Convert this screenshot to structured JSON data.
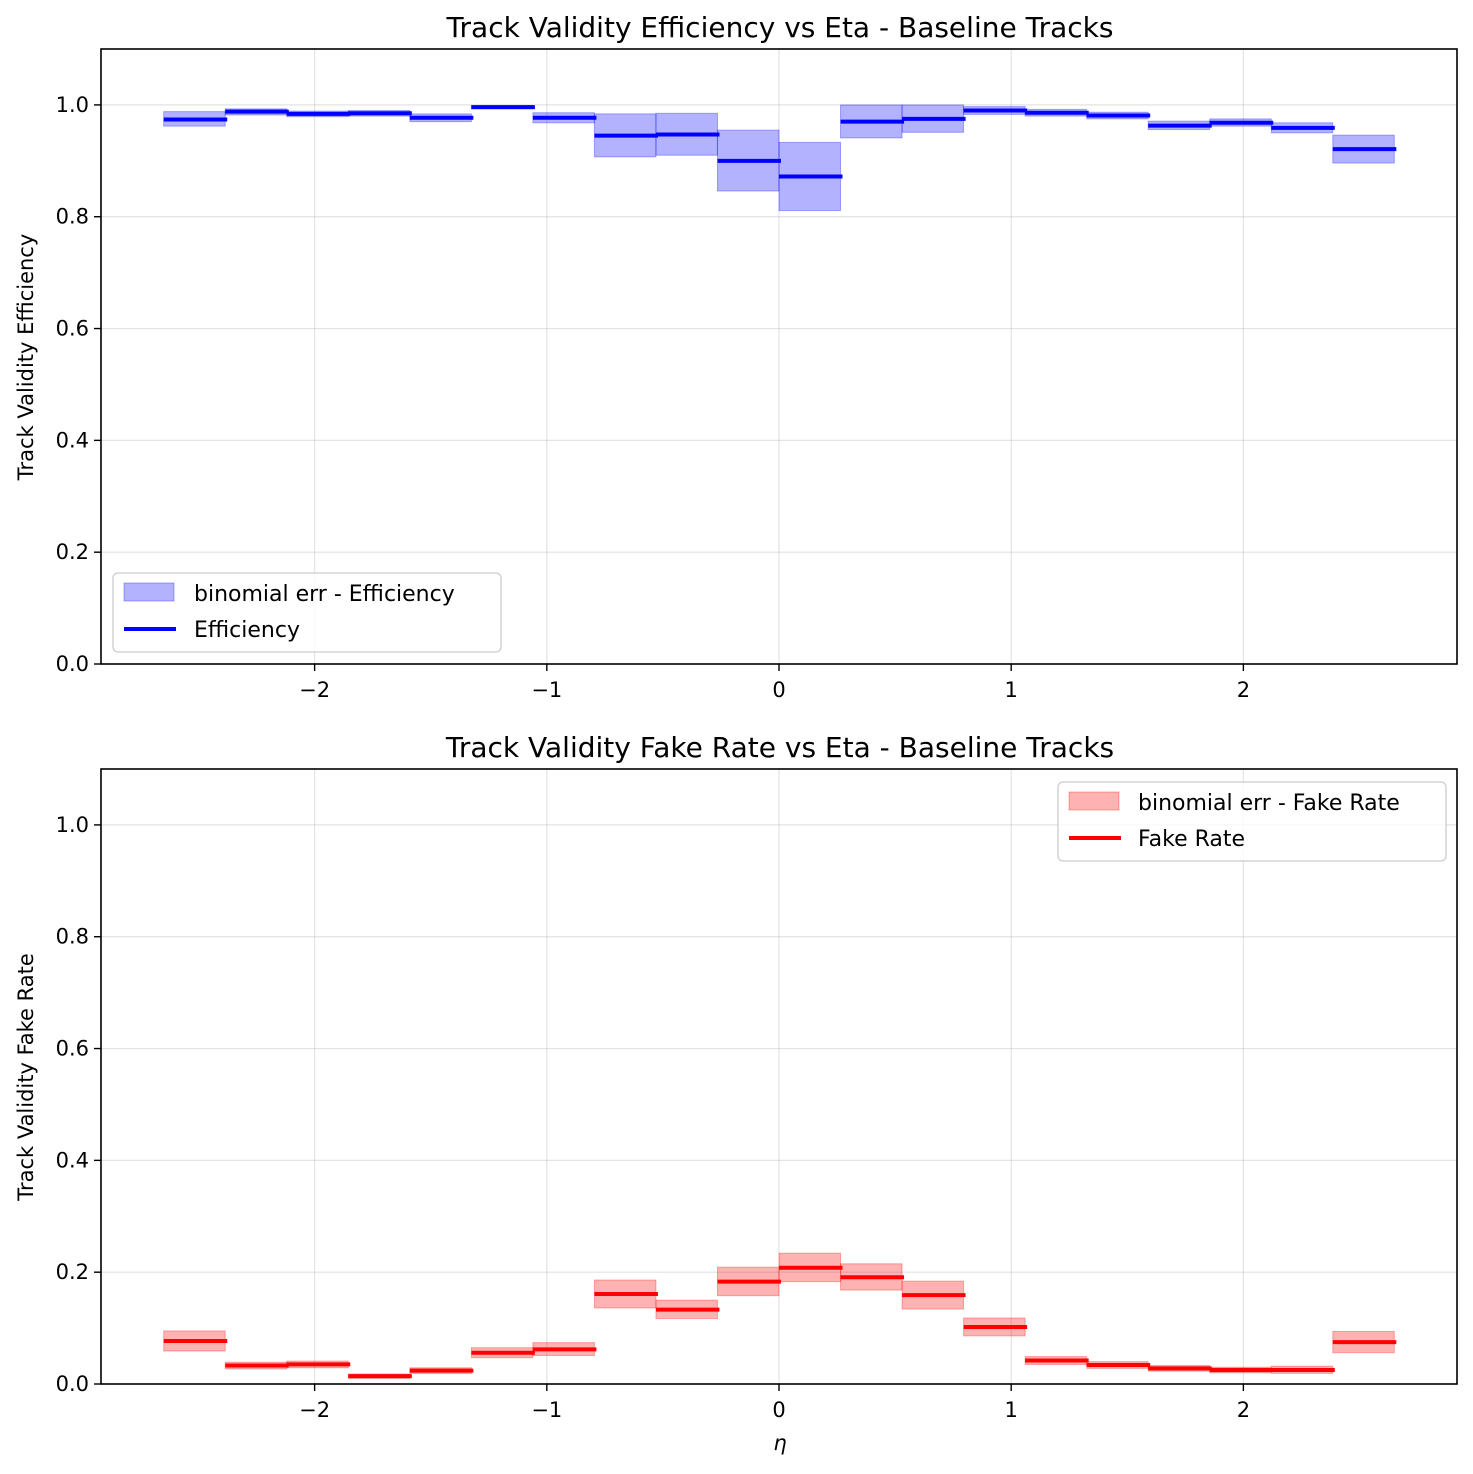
{
  "chart_data": [
    {
      "type": "bar",
      "title": "Track Validity Efficiency vs Eta - Baseline Tracks",
      "xlabel": "",
      "ylabel": "Track Validity Efficiency",
      "xlim": [
        -2.92,
        2.92
      ],
      "ylim": [
        0,
        1.1
      ],
      "xticks": [
        -2,
        -1,
        0,
        1,
        2
      ],
      "xtick_labels": [
        "−2",
        "−1",
        "0",
        "1",
        "2"
      ],
      "yticks": [
        0.0,
        0.2,
        0.4,
        0.6,
        0.8,
        1.0
      ],
      "ytick_labels": [
        "0.0",
        "0.2",
        "0.4",
        "0.6",
        "0.8",
        "1.0"
      ],
      "grid": true,
      "legend_position": "lower-left",
      "bin_edges": [
        -2.65,
        -2.385,
        -2.12,
        -1.855,
        -1.59,
        -1.325,
        -1.06,
        -0.795,
        -0.53,
        -0.265,
        0.0,
        0.265,
        0.53,
        0.795,
        1.06,
        1.325,
        1.59,
        1.855,
        2.12,
        2.385,
        2.65
      ],
      "series": [
        {
          "name": "Efficiency",
          "kind": "step",
          "color": "#0000ff",
          "values": [
            0.974,
            0.988,
            0.984,
            0.985,
            0.977,
            0.996,
            0.977,
            0.945,
            0.947,
            0.9,
            0.872,
            0.97,
            0.975,
            0.99,
            0.986,
            0.981,
            0.963,
            0.968,
            0.959,
            0.921
          ]
        },
        {
          "name": "binomial err - Efficiency",
          "kind": "band",
          "color": "#0000ff",
          "lower": [
            0.962,
            0.982,
            0.979,
            0.98,
            0.97,
            0.993,
            0.968,
            0.907,
            0.91,
            0.846,
            0.811,
            0.941,
            0.951,
            0.983,
            0.98,
            0.975,
            0.956,
            0.962,
            0.95,
            0.896
          ],
          "upper": [
            0.988,
            0.993,
            0.989,
            0.99,
            0.984,
            0.999,
            0.986,
            0.984,
            0.985,
            0.955,
            0.933,
            1.0,
            1.0,
            0.997,
            0.992,
            0.987,
            0.971,
            0.975,
            0.968,
            0.946
          ]
        }
      ]
    },
    {
      "type": "bar",
      "title": "Track Validity Fake Rate vs Eta - Baseline Tracks",
      "xlabel": "η",
      "ylabel": "Track Validity Fake Rate",
      "xlim": [
        -2.92,
        2.92
      ],
      "ylim": [
        0,
        1.1
      ],
      "xticks": [
        -2,
        -1,
        0,
        1,
        2
      ],
      "xtick_labels": [
        "−2",
        "−1",
        "0",
        "1",
        "2"
      ],
      "yticks": [
        0.0,
        0.2,
        0.4,
        0.6,
        0.8,
        1.0
      ],
      "ytick_labels": [
        "0.0",
        "0.2",
        "0.4",
        "0.6",
        "0.8",
        "1.0"
      ],
      "grid": true,
      "legend_position": "upper-right",
      "bin_edges": [
        -2.65,
        -2.385,
        -2.12,
        -1.855,
        -1.59,
        -1.325,
        -1.06,
        -0.795,
        -0.53,
        -0.265,
        0.0,
        0.265,
        0.53,
        0.795,
        1.06,
        1.325,
        1.59,
        1.855,
        2.12,
        2.385,
        2.65
      ],
      "series": [
        {
          "name": "Fake Rate",
          "kind": "step",
          "color": "#ff0000",
          "values": [
            0.077,
            0.033,
            0.035,
            0.014,
            0.024,
            0.056,
            0.062,
            0.161,
            0.133,
            0.183,
            0.208,
            0.191,
            0.159,
            0.102,
            0.042,
            0.034,
            0.028,
            0.025,
            0.025,
            0.075
          ]
        },
        {
          "name": "binomial err - Fake Rate",
          "kind": "band",
          "color": "#ff0000",
          "lower": [
            0.059,
            0.027,
            0.029,
            0.01,
            0.019,
            0.047,
            0.051,
            0.136,
            0.117,
            0.158,
            0.183,
            0.168,
            0.134,
            0.086,
            0.035,
            0.028,
            0.023,
            0.02,
            0.019,
            0.056
          ],
          "upper": [
            0.095,
            0.039,
            0.041,
            0.018,
            0.029,
            0.065,
            0.074,
            0.186,
            0.15,
            0.209,
            0.234,
            0.215,
            0.184,
            0.118,
            0.049,
            0.04,
            0.033,
            0.03,
            0.032,
            0.094
          ]
        }
      ]
    }
  ]
}
